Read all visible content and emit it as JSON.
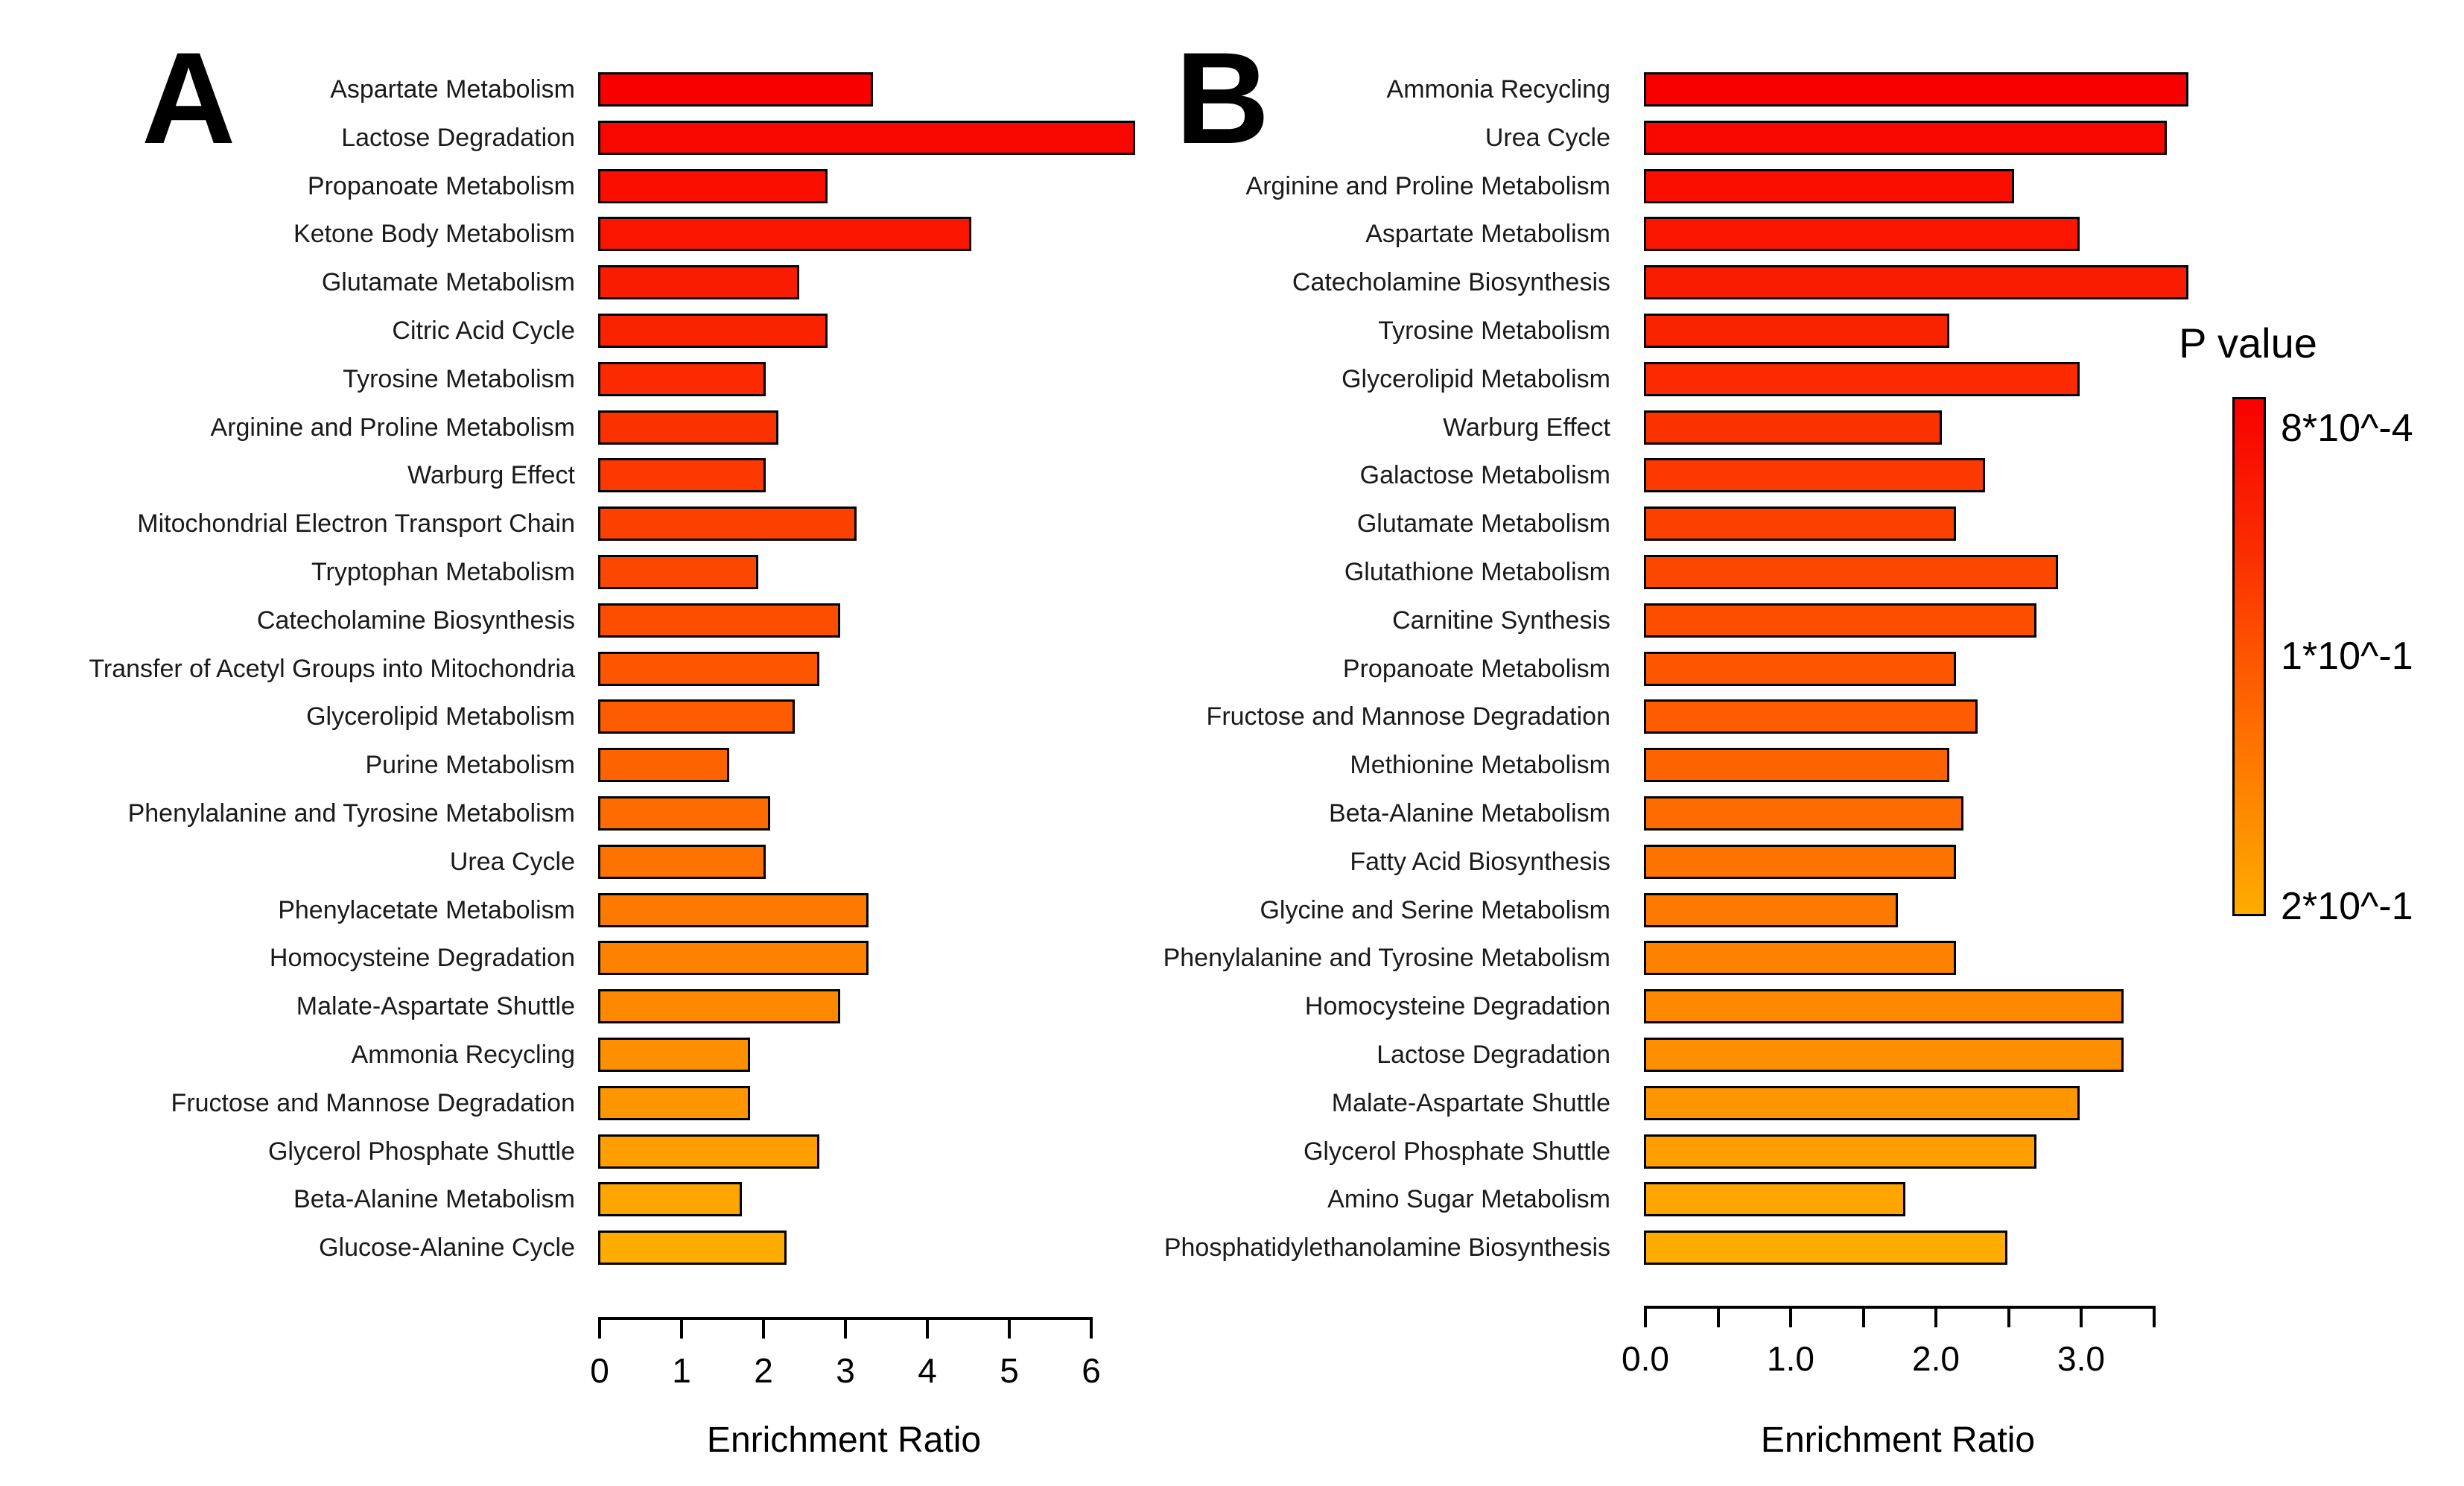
{
  "panel_letters": [
    "A",
    "B"
  ],
  "legend": {
    "title": "P value",
    "top_label": "8*10^-4",
    "mid_label": "1*10^-1",
    "bottom_label": "2*10^-1",
    "gradient_stops": [
      "#F80000",
      "#FD5500",
      "#FFAC00"
    ]
  },
  "chart_data": [
    {
      "type": "bar",
      "orientation": "horizontal",
      "panel": "A",
      "xlabel": "Enrichment Ratio",
      "xlim": [
        0,
        6.6
      ],
      "xticks": [
        0,
        1,
        2,
        3,
        4,
        5,
        6
      ],
      "xtick_labels": [
        "0",
        "1",
        "2",
        "3",
        "4",
        "5",
        "6"
      ],
      "color_encoding": "P value (red = low p, orange = high p)",
      "categories": [
        "Aspartate Metabolism",
        "Lactose Degradation",
        "Propanoate Metabolism",
        "Ketone Body Metabolism",
        "Glutamate Metabolism",
        "Citric Acid Cycle",
        "Tyrosine Metabolism",
        "Arginine and Proline Metabolism",
        "Warburg Effect",
        "Mitochondrial Electron Transport Chain",
        "Tryptophan Metabolism",
        "Catecholamine Biosynthesis",
        "Transfer of Acetyl Groups into Mitochondria",
        "Glycerolipid Metabolism",
        "Purine Metabolism",
        "Phenylalanine and Tyrosine Metabolism",
        "Urea Cycle",
        "Phenylacetate Metabolism",
        "Homocysteine Degradation",
        "Malate-Aspartate Shuttle",
        "Ammonia Recycling",
        "Fructose and Mannose Degradation",
        "Glycerol Phosphate Shuttle",
        "Beta-Alanine Metabolism",
        "Glucose-Alanine Cycle"
      ],
      "values": [
        3.35,
        6.55,
        2.8,
        4.55,
        2.45,
        2.8,
        2.05,
        2.2,
        2.05,
        3.15,
        1.95,
        2.95,
        2.7,
        2.4,
        1.6,
        2.1,
        2.05,
        3.3,
        3.3,
        2.95,
        1.85,
        1.85,
        2.7,
        1.75,
        2.3
      ],
      "bar_colors": [
        "#F80000",
        "#F80700",
        "#F90E00",
        "#F91500",
        "#FA1C00",
        "#FA2300",
        "#FB2A00",
        "#FB3200",
        "#FB3900",
        "#FC4000",
        "#FC4700",
        "#FD4E00",
        "#FD5500",
        "#FD5C00",
        "#FD6300",
        "#FE6B00",
        "#FE7200",
        "#FE7900",
        "#FE8100",
        "#FE8800",
        "#FE8F00",
        "#FF9600",
        "#FF9E00",
        "#FFA500",
        "#FFAC00"
      ]
    },
    {
      "type": "bar",
      "orientation": "horizontal",
      "panel": "B",
      "xlabel": "Enrichment Ratio",
      "xlim": [
        0,
        3.8
      ],
      "xticks": [
        0,
        0.5,
        1.0,
        1.5,
        2.0,
        2.5,
        3.0,
        3.5
      ],
      "xtick_labels": [
        "0.0",
        "",
        "1.0",
        "",
        "2.0",
        "",
        "3.0",
        ""
      ],
      "color_encoding": "P value (red = low p, orange = high p)",
      "categories": [
        "Ammonia Recycling",
        "Urea Cycle",
        "Arginine and Proline Metabolism",
        "Aspartate Metabolism",
        "Catecholamine Biosynthesis",
        "Tyrosine Metabolism",
        "Glycerolipid Metabolism",
        "Warburg Effect",
        "Galactose Metabolism",
        "Glutamate Metabolism",
        "Glutathione Metabolism",
        "Carnitine Synthesis",
        "Propanoate Metabolism",
        "Fructose and Mannose Degradation",
        "Methionine Metabolism",
        "Beta-Alanine Metabolism",
        "Fatty Acid Biosynthesis",
        "Glycine and Serine Metabolism",
        "Phenylalanine and Tyrosine Metabolism",
        "Homocysteine Degradation",
        "Lactose Degradation",
        "Malate-Aspartate Shuttle",
        "Glycerol Phosphate Shuttle",
        "Amino Sugar Metabolism",
        "Phosphatidylethanolamine Biosynthesis"
      ],
      "values": [
        3.75,
        3.6,
        2.55,
        3.0,
        3.75,
        2.1,
        3.0,
        2.05,
        2.35,
        2.15,
        2.85,
        2.7,
        2.15,
        2.3,
        2.1,
        2.2,
        2.15,
        1.75,
        2.15,
        3.3,
        3.3,
        3.0,
        2.7,
        1.8,
        2.5
      ],
      "bar_colors": [
        "#F80000",
        "#F80700",
        "#F90E00",
        "#F91500",
        "#FA1C00",
        "#FA2300",
        "#FB2A00",
        "#FB3200",
        "#FB3900",
        "#FC4000",
        "#FC4700",
        "#FD4E00",
        "#FD5500",
        "#FD5C00",
        "#FD6300",
        "#FE6B00",
        "#FE7200",
        "#FE7900",
        "#FE8100",
        "#FE8800",
        "#FE8F00",
        "#FF9600",
        "#FF9E00",
        "#FFA500",
        "#FFAC00"
      ]
    }
  ]
}
